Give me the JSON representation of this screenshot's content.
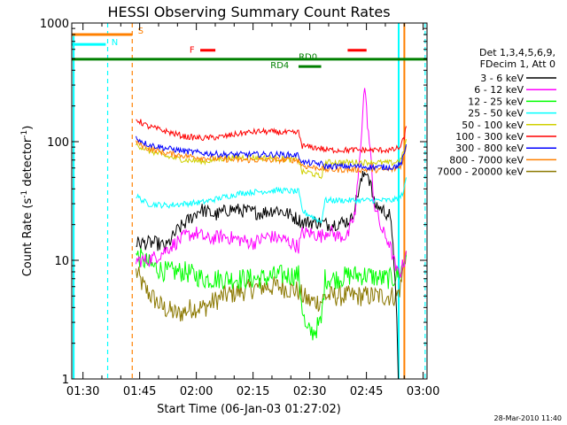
{
  "chart_data": {
    "type": "line",
    "title": "HESSI Observing Summary Count Rates",
    "xlabel": "Start Time (06-Jan-03 01:27:02)",
    "ylabel_main": "Count Rate (s",
    "ylabel_sup1": "-1",
    "ylabel_mid": " detector",
    "ylabel_sup2": "-1",
    "ylabel_end": ")",
    "timestamp": "28-Mar-2010 11:40",
    "y_scale": "log",
    "ylim": [
      1,
      1000
    ],
    "xlim_minutes": [
      0,
      94
    ],
    "x_ticks": [
      {
        "minute": 2.97,
        "label": "01:30"
      },
      {
        "minute": 17.97,
        "label": "01:45"
      },
      {
        "minute": 32.97,
        "label": "02:00"
      },
      {
        "minute": 47.97,
        "label": "02:15"
      },
      {
        "minute": 62.97,
        "label": "02:30"
      },
      {
        "minute": 77.97,
        "label": "02:45"
      },
      {
        "minute": 92.97,
        "label": "03:00"
      }
    ],
    "y_ticks": [
      {
        "value": 1,
        "label": "1"
      },
      {
        "value": 10,
        "label": "10"
      },
      {
        "value": 100,
        "label": "100"
      },
      {
        "value": 1000,
        "label": "1000"
      }
    ],
    "legend_header_1": "Det 1,3,4,5,6,9,",
    "legend_header_2": "FDecim 1, Att 0",
    "flags": [
      {
        "label": "S",
        "color": "#ff8000",
        "value": 800,
        "x": [
          0,
          16
        ]
      },
      {
        "label": "N",
        "color": "#00ffff",
        "value": 660,
        "x": [
          0,
          9
        ]
      },
      {
        "label": "F",
        "color": "#ff0000",
        "value": 590,
        "x": [
          34,
          38
        ]
      },
      {
        "label": "",
        "color": "#ff0000",
        "value": 590,
        "x": [
          73,
          78
        ]
      },
      {
        "label": "RD0",
        "color": "#008000",
        "value": 495,
        "x": [
          0,
          94
        ]
      },
      {
        "label": "RD4",
        "color": "#008000",
        "value": 430,
        "x": [
          60,
          66
        ]
      }
    ],
    "vlines": [
      {
        "minute": 0.5,
        "color": "#00ffff",
        "style": "solid",
        "value_top": 800
      },
      {
        "minute": 9.5,
        "color": "#00ffff",
        "style": "dashed"
      },
      {
        "minute": 16,
        "color": "#ff8000",
        "style": "dashed"
      },
      {
        "minute": 86.5,
        "color": "#00ffff",
        "style": "solid"
      },
      {
        "minute": 88,
        "color": "#ff8000",
        "style": "solid"
      },
      {
        "minute": 93.5,
        "color": "#00ffff",
        "style": "dashed"
      }
    ],
    "series": [
      {
        "name": "3 - 6 keV",
        "color": "#000000",
        "points": [
          [
            17,
            14
          ],
          [
            22,
            14
          ],
          [
            25,
            13
          ],
          [
            28,
            18
          ],
          [
            31,
            22
          ],
          [
            34,
            27
          ],
          [
            38,
            24
          ],
          [
            42,
            27
          ],
          [
            46,
            26
          ],
          [
            50,
            25
          ],
          [
            54,
            27
          ],
          [
            58,
            24
          ],
          [
            60,
            22
          ],
          [
            61,
            21
          ],
          [
            65,
            21
          ],
          [
            68,
            20
          ],
          [
            72,
            21
          ],
          [
            74,
            22
          ],
          [
            76,
            40
          ],
          [
            77,
            50
          ],
          [
            78,
            58
          ],
          [
            79,
            45
          ],
          [
            80,
            30
          ],
          [
            82,
            27
          ],
          [
            84,
            24
          ],
          [
            85,
            15
          ],
          [
            86,
            3
          ],
          [
            86.4,
            1
          ]
        ]
      },
      {
        "name": "6 - 12 keV",
        "color": "#ff00ff",
        "points": [
          [
            17,
            10
          ],
          [
            20,
            10
          ],
          [
            23,
            11
          ],
          [
            26,
            13
          ],
          [
            30,
            16
          ],
          [
            33,
            17
          ],
          [
            36,
            15
          ],
          [
            40,
            16
          ],
          [
            44,
            15
          ],
          [
            48,
            14
          ],
          [
            52,
            16
          ],
          [
            56,
            15
          ],
          [
            60,
            13
          ],
          [
            61,
            17
          ],
          [
            63,
            17
          ],
          [
            66,
            16
          ],
          [
            68,
            18
          ],
          [
            70,
            16
          ],
          [
            73,
            16
          ],
          [
            75,
            25
          ],
          [
            76,
            60
          ],
          [
            77,
            180
          ],
          [
            77.5,
            300
          ],
          [
            78,
            180
          ],
          [
            79,
            80
          ],
          [
            80,
            30
          ],
          [
            82,
            18
          ],
          [
            84,
            14
          ],
          [
            86,
            8
          ],
          [
            87,
            8
          ],
          [
            88,
            10
          ],
          [
            88.5,
            12
          ]
        ]
      },
      {
        "name": "12 - 25 keV",
        "color": "#00ff00",
        "points": [
          [
            17,
            11
          ],
          [
            19,
            10
          ],
          [
            21,
            9
          ],
          [
            25,
            8
          ],
          [
            30,
            8
          ],
          [
            35,
            7
          ],
          [
            40,
            7
          ],
          [
            45,
            7
          ],
          [
            50,
            7
          ],
          [
            55,
            7.5
          ],
          [
            60,
            7.5
          ],
          [
            61,
            4
          ],
          [
            62,
            2.5
          ],
          [
            64,
            2.5
          ],
          [
            66,
            3
          ],
          [
            67,
            7
          ],
          [
            70,
            7
          ],
          [
            74,
            7.5
          ],
          [
            78,
            7.5
          ],
          [
            82,
            7
          ],
          [
            85,
            7
          ],
          [
            87,
            8
          ],
          [
            88.5,
            11
          ]
        ]
      },
      {
        "name": "25 - 50 keV",
        "color": "#00ffff",
        "points": [
          [
            17,
            35
          ],
          [
            20,
            30
          ],
          [
            25,
            29
          ],
          [
            30,
            30
          ],
          [
            35,
            31
          ],
          [
            40,
            34
          ],
          [
            45,
            37
          ],
          [
            50,
            38
          ],
          [
            55,
            39
          ],
          [
            59,
            38
          ],
          [
            60,
            38
          ],
          [
            61,
            26
          ],
          [
            63,
            24
          ],
          [
            66,
            21
          ],
          [
            67,
            32
          ],
          [
            70,
            32
          ],
          [
            75,
            32
          ],
          [
            80,
            32
          ],
          [
            85,
            32
          ],
          [
            87,
            34
          ],
          [
            88,
            40
          ],
          [
            88.5,
            50
          ]
        ]
      },
      {
        "name": "50 - 100 keV",
        "color": "#d0d000",
        "points": [
          [
            17,
            95
          ],
          [
            20,
            85
          ],
          [
            25,
            75
          ],
          [
            30,
            70
          ],
          [
            35,
            68
          ],
          [
            40,
            72
          ],
          [
            45,
            74
          ],
          [
            50,
            73
          ],
          [
            55,
            72
          ],
          [
            59,
            70
          ],
          [
            60,
            70
          ],
          [
            61,
            55
          ],
          [
            63,
            55
          ],
          [
            66,
            50
          ],
          [
            67,
            67
          ],
          [
            70,
            67
          ],
          [
            75,
            67
          ],
          [
            80,
            67
          ],
          [
            85,
            66
          ],
          [
            87,
            70
          ],
          [
            88,
            85
          ],
          [
            88.5,
            105
          ]
        ]
      },
      {
        "name": "100 - 300 keV",
        "color": "#ff0000",
        "points": [
          [
            17,
            155
          ],
          [
            20,
            135
          ],
          [
            25,
            122
          ],
          [
            30,
            110
          ],
          [
            35,
            107
          ],
          [
            40,
            110
          ],
          [
            45,
            118
          ],
          [
            50,
            122
          ],
          [
            55,
            120
          ],
          [
            59,
            118
          ],
          [
            60,
            120
          ],
          [
            61,
            92
          ],
          [
            63,
            90
          ],
          [
            66,
            88
          ],
          [
            67,
            85
          ],
          [
            70,
            85
          ],
          [
            75,
            85
          ],
          [
            80,
            85
          ],
          [
            85,
            85
          ],
          [
            87,
            90
          ],
          [
            88,
            110
          ],
          [
            88.5,
            135
          ]
        ]
      },
      {
        "name": "300 - 800 keV",
        "color": "#0000ff",
        "points": [
          [
            17,
            108
          ],
          [
            20,
            95
          ],
          [
            25,
            88
          ],
          [
            30,
            83
          ],
          [
            35,
            80
          ],
          [
            40,
            78
          ],
          [
            45,
            78
          ],
          [
            50,
            78
          ],
          [
            55,
            78
          ],
          [
            59,
            77
          ],
          [
            60,
            77
          ],
          [
            61,
            67
          ],
          [
            63,
            66
          ],
          [
            66,
            65
          ],
          [
            67,
            62
          ],
          [
            70,
            62
          ],
          [
            75,
            62
          ],
          [
            80,
            61
          ],
          [
            85,
            61
          ],
          [
            87,
            64
          ],
          [
            88,
            78
          ],
          [
            88.5,
            95
          ]
        ]
      },
      {
        "name": "800 - 7000 keV",
        "color": "#ff8000",
        "points": [
          [
            17,
            100
          ],
          [
            20,
            88
          ],
          [
            25,
            80
          ],
          [
            30,
            76
          ],
          [
            35,
            73
          ],
          [
            40,
            71
          ],
          [
            45,
            70
          ],
          [
            50,
            70
          ],
          [
            55,
            70
          ],
          [
            59,
            70
          ],
          [
            60,
            70
          ],
          [
            61,
            63
          ],
          [
            63,
            61
          ],
          [
            66,
            60
          ],
          [
            67,
            58
          ],
          [
            70,
            58
          ],
          [
            75,
            58
          ],
          [
            80,
            58
          ],
          [
            85,
            58
          ],
          [
            87,
            62
          ],
          [
            88,
            76
          ],
          [
            88.5,
            92
          ]
        ]
      },
      {
        "name": "7000 - 20000 keV",
        "color": "#8b7800",
        "points": [
          [
            17,
            8
          ],
          [
            19,
            6
          ],
          [
            21,
            5
          ],
          [
            24,
            4
          ],
          [
            28,
            3.5
          ],
          [
            32,
            4
          ],
          [
            35,
            4
          ],
          [
            40,
            5
          ],
          [
            45,
            5.5
          ],
          [
            50,
            6
          ],
          [
            55,
            6
          ],
          [
            60,
            5.5
          ],
          [
            61,
            5
          ],
          [
            63,
            4.5
          ],
          [
            66,
            4.5
          ],
          [
            67,
            5
          ],
          [
            70,
            5
          ],
          [
            75,
            5
          ],
          [
            80,
            5
          ],
          [
            84,
            5
          ],
          [
            86,
            5
          ],
          [
            87,
            6
          ],
          [
            88,
            10
          ],
          [
            88.5,
            12
          ]
        ]
      }
    ]
  }
}
